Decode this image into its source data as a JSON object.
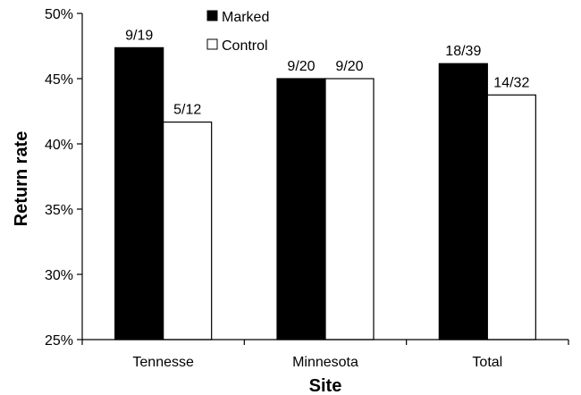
{
  "chart_data": {
    "type": "bar",
    "categories": [
      "Tennesse",
      "Minnesota",
      "Total"
    ],
    "series": [
      {
        "name": "Marked",
        "values": [
          47.37,
          45.0,
          46.15
        ],
        "labels": [
          "9/19",
          "9/20",
          "18/39"
        ],
        "color": "#000000"
      },
      {
        "name": "Control",
        "values": [
          41.67,
          45.0,
          43.75
        ],
        "labels": [
          "5/12",
          "9/20",
          "14/32"
        ],
        "color": "#ffffff"
      }
    ],
    "yticks": [
      "25%",
      "30%",
      "35%",
      "40%",
      "45%",
      "50%"
    ],
    "ylim": [
      25,
      50
    ],
    "xlabel": "Site",
    "ylabel": "Return rate",
    "legend_position": "top-center",
    "grid": false
  }
}
